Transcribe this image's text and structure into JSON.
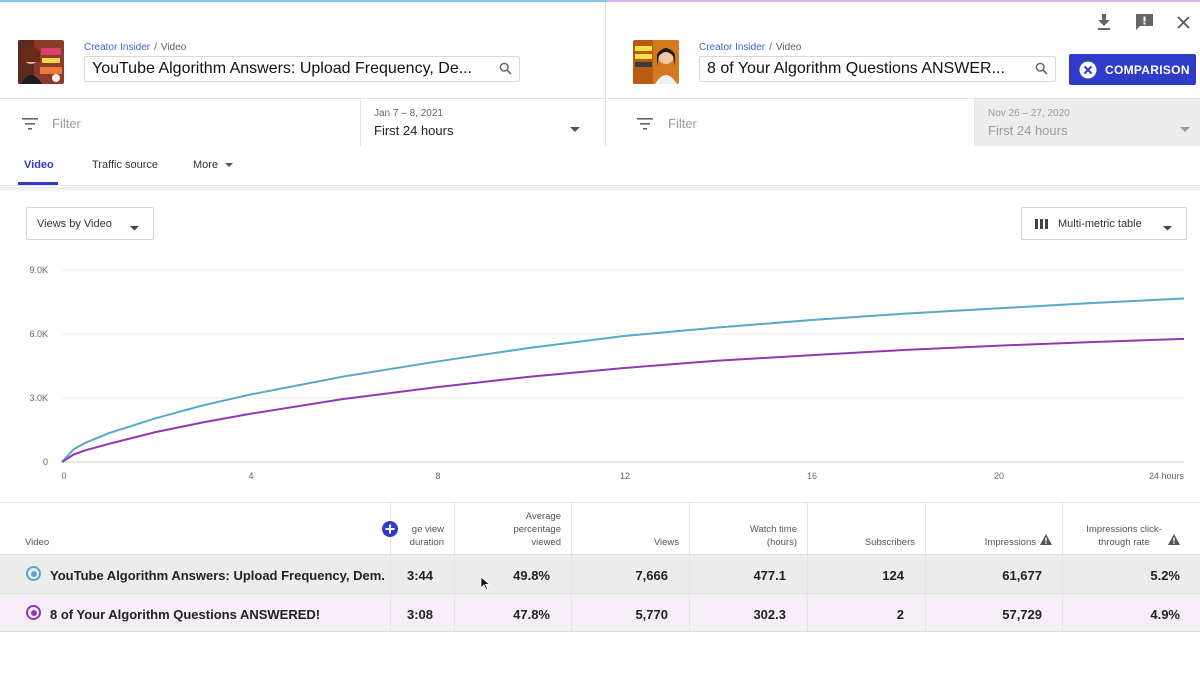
{
  "colors": {
    "accent": "#2f3bc9",
    "series_1": "#5aa7c8",
    "series_2": "#9238b5",
    "breadcrumb_link": "#3868d8"
  },
  "left": {
    "channel": "Creator Insider",
    "crumb_sep": "/",
    "section": "Video",
    "title": "YouTube Algorithm Answers: Upload Frequency, De...",
    "filter_placeholder": "Filter",
    "date_range": "Jan 7 – 8, 2021",
    "period": "First 24 hours"
  },
  "right": {
    "channel": "Creator Insider",
    "crumb_sep": "/",
    "section": "Video",
    "title": "8 of Your Algorithm Questions ANSWER...",
    "filter_placeholder": "Filter",
    "date_range": "Nov 26 – 27, 2020",
    "period": "First 24 hours"
  },
  "toolbar": {
    "comparison_label": "COMPARISON",
    "icons": [
      "download-icon",
      "feedback-icon",
      "close-icon"
    ]
  },
  "tabs": [
    {
      "label": "Video",
      "active": true
    },
    {
      "label": "Traffic source",
      "active": false
    },
    {
      "label": "More",
      "active": false
    }
  ],
  "controls": {
    "views_by": "Views by Video",
    "table_mode": "Multi-metric table"
  },
  "chart_data": {
    "type": "line",
    "title": "",
    "xlabel": "",
    "ylabel": "",
    "xlim": [
      0,
      24
    ],
    "ylim": [
      0,
      9000
    ],
    "x_ticks": [
      "0",
      "4",
      "8",
      "12",
      "16",
      "20",
      "24 hours"
    ],
    "x_tick_values": [
      0,
      4,
      8,
      12,
      16,
      20,
      24
    ],
    "y_ticks": [
      "0",
      "3.0K",
      "6.0K",
      "9.0K"
    ],
    "y_tick_values": [
      0,
      3000,
      6000,
      9000
    ],
    "grid": true,
    "series": [
      {
        "color": "#5aa7c8",
        "x": [
          0,
          0.25,
          0.5,
          1,
          2,
          3,
          4,
          6,
          8,
          10,
          12,
          14,
          16,
          18,
          20,
          22,
          24
        ],
        "y": [
          0,
          600,
          900,
          1350,
          2050,
          2650,
          3150,
          4000,
          4700,
          5350,
          5900,
          6300,
          6650,
          6950,
          7200,
          7450,
          7666
        ]
      },
      {
        "color": "#9238b5",
        "x": [
          0,
          0.25,
          0.5,
          1,
          2,
          3,
          4,
          6,
          8,
          10,
          12,
          14,
          16,
          18,
          20,
          22,
          24
        ],
        "y": [
          0,
          350,
          550,
          850,
          1400,
          1850,
          2250,
          2950,
          3500,
          4000,
          4400,
          4750,
          5000,
          5250,
          5450,
          5620,
          5770
        ]
      }
    ]
  },
  "table": {
    "columns": [
      "Video",
      "Average view duration",
      "Average percentage viewed",
      "Views",
      "Watch time (hours)",
      "Subscribers",
      "Impressions",
      "Impressions click-through rate"
    ],
    "col1_visible": "ge view duration",
    "rows": [
      {
        "title": "YouTube Algorithm Answers: Upload Frequency, Dem...",
        "avg_view_duration": "3:44",
        "avg_pct_viewed": "49.8%",
        "views": "7,666",
        "watch_time": "477.1",
        "subscribers": "124",
        "impressions": "61,677",
        "ctr": "5.2%"
      },
      {
        "title": "8 of Your Algorithm Questions ANSWERED!",
        "avg_view_duration": "3:08",
        "avg_pct_viewed": "47.8%",
        "views": "5,770",
        "watch_time": "302.3",
        "subscribers": "2",
        "impressions": "57,729",
        "ctr": "4.9%"
      }
    ]
  }
}
